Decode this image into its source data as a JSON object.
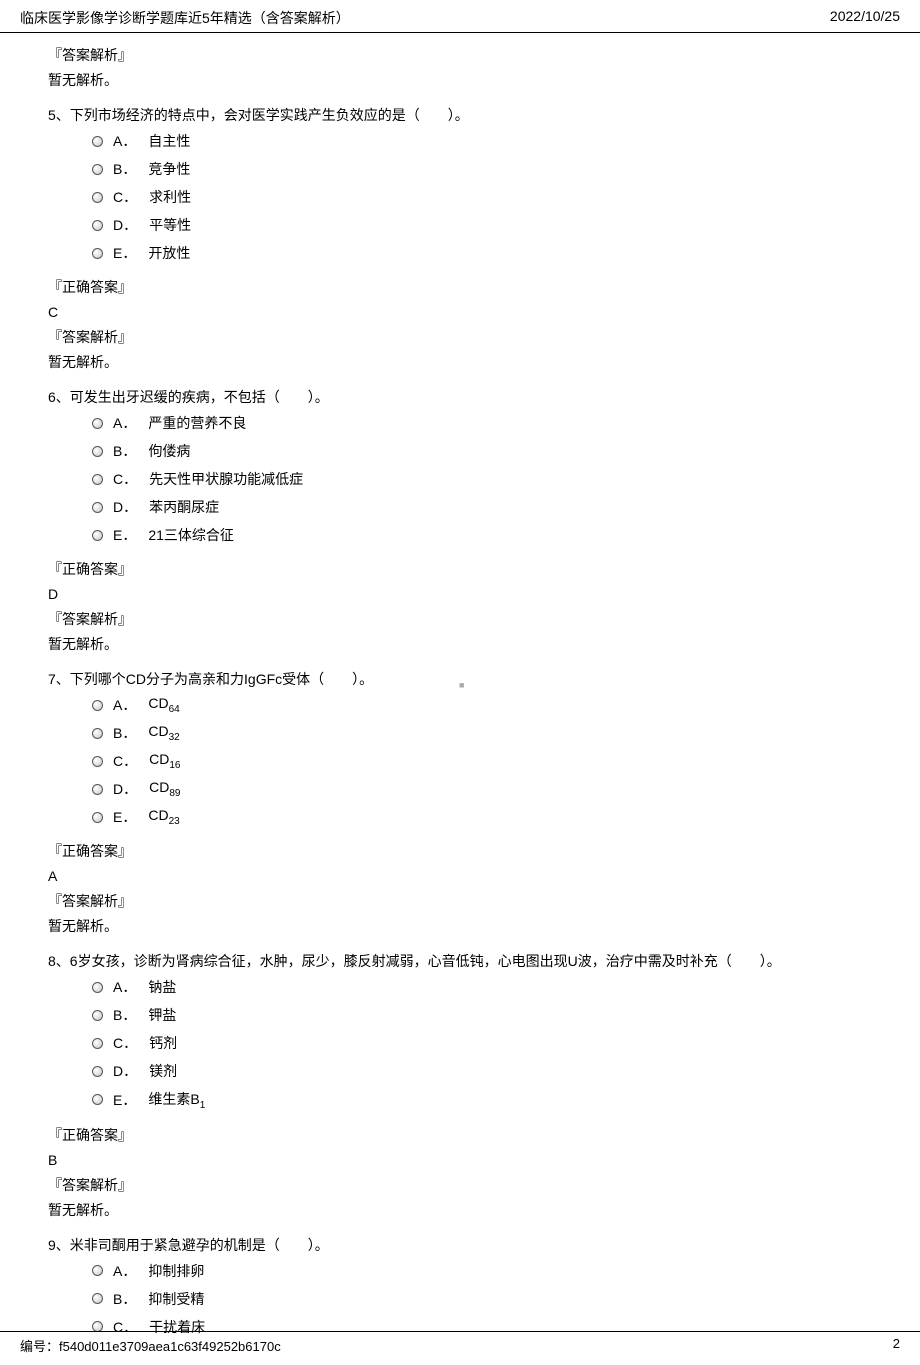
{
  "header": {
    "title": "临床医学影像学诊断学题库近5年精选（含答案解析）",
    "date": "2022/10/25"
  },
  "labels": {
    "analysis": "『答案解析』",
    "noAnalysis": "暂无解析。",
    "correct": "『正确答案』"
  },
  "questions": [
    {
      "num": "5",
      "text": "、下列市场经济的特点中，会对医学实践产生负效应的是（　　）。",
      "options": [
        {
          "letter": "A．",
          "text": "自主性"
        },
        {
          "letter": "B．",
          "text": "竞争性"
        },
        {
          "letter": "C．",
          "text": "求利性"
        },
        {
          "letter": "D．",
          "text": "平等性"
        },
        {
          "letter": "E．",
          "text": "开放性"
        }
      ],
      "answer": "C"
    },
    {
      "num": "6",
      "text": "、可发生出牙迟缓的疾病，不包括（　　）。",
      "options": [
        {
          "letter": "A．",
          "text": "严重的营养不良"
        },
        {
          "letter": "B．",
          "text": "佝偻病"
        },
        {
          "letter": "C．",
          "text": "先天性甲状腺功能减低症"
        },
        {
          "letter": "D．",
          "text": "苯丙酮尿症"
        },
        {
          "letter": "E．",
          "text": "21三体综合征"
        }
      ],
      "answer": "D"
    },
    {
      "num": "7",
      "text": "、下列哪个CD分子为高亲和力IgGFc受体（　　）。",
      "options": [
        {
          "letter": "A．",
          "prefix": "CD",
          "sub": "64"
        },
        {
          "letter": "B．",
          "prefix": "CD",
          "sub": "32"
        },
        {
          "letter": "C．",
          "prefix": "CD",
          "sub": "16"
        },
        {
          "letter": "D．",
          "prefix": "CD",
          "sub": "89"
        },
        {
          "letter": "E．",
          "prefix": "CD",
          "sub": "23"
        }
      ],
      "answer": "A"
    },
    {
      "num": "8",
      "text": "、6岁女孩，诊断为肾病综合征，水肿，尿少，膝反射减弱，心音低钝，心电图出现U波，治疗中需及时补充（　　）。",
      "options": [
        {
          "letter": "A．",
          "text": "钠盐"
        },
        {
          "letter": "B．",
          "text": "钾盐"
        },
        {
          "letter": "C．",
          "text": "钙剂"
        },
        {
          "letter": "D．",
          "text": "镁剂"
        },
        {
          "letter": "E．",
          "prefix": "维生素B",
          "sub": "1"
        }
      ],
      "answer": "B"
    },
    {
      "num": "9",
      "text": "、米非司酮用于紧急避孕的机制是（　　）。",
      "options": [
        {
          "letter": "A．",
          "text": "抑制排卵"
        },
        {
          "letter": "B．",
          "text": "抑制受精"
        },
        {
          "letter": "C．",
          "text": "干扰着床"
        }
      ]
    }
  ],
  "footer": {
    "id": "编号：f540d011e3709aea1c63f49252b6170c",
    "page": "2"
  }
}
